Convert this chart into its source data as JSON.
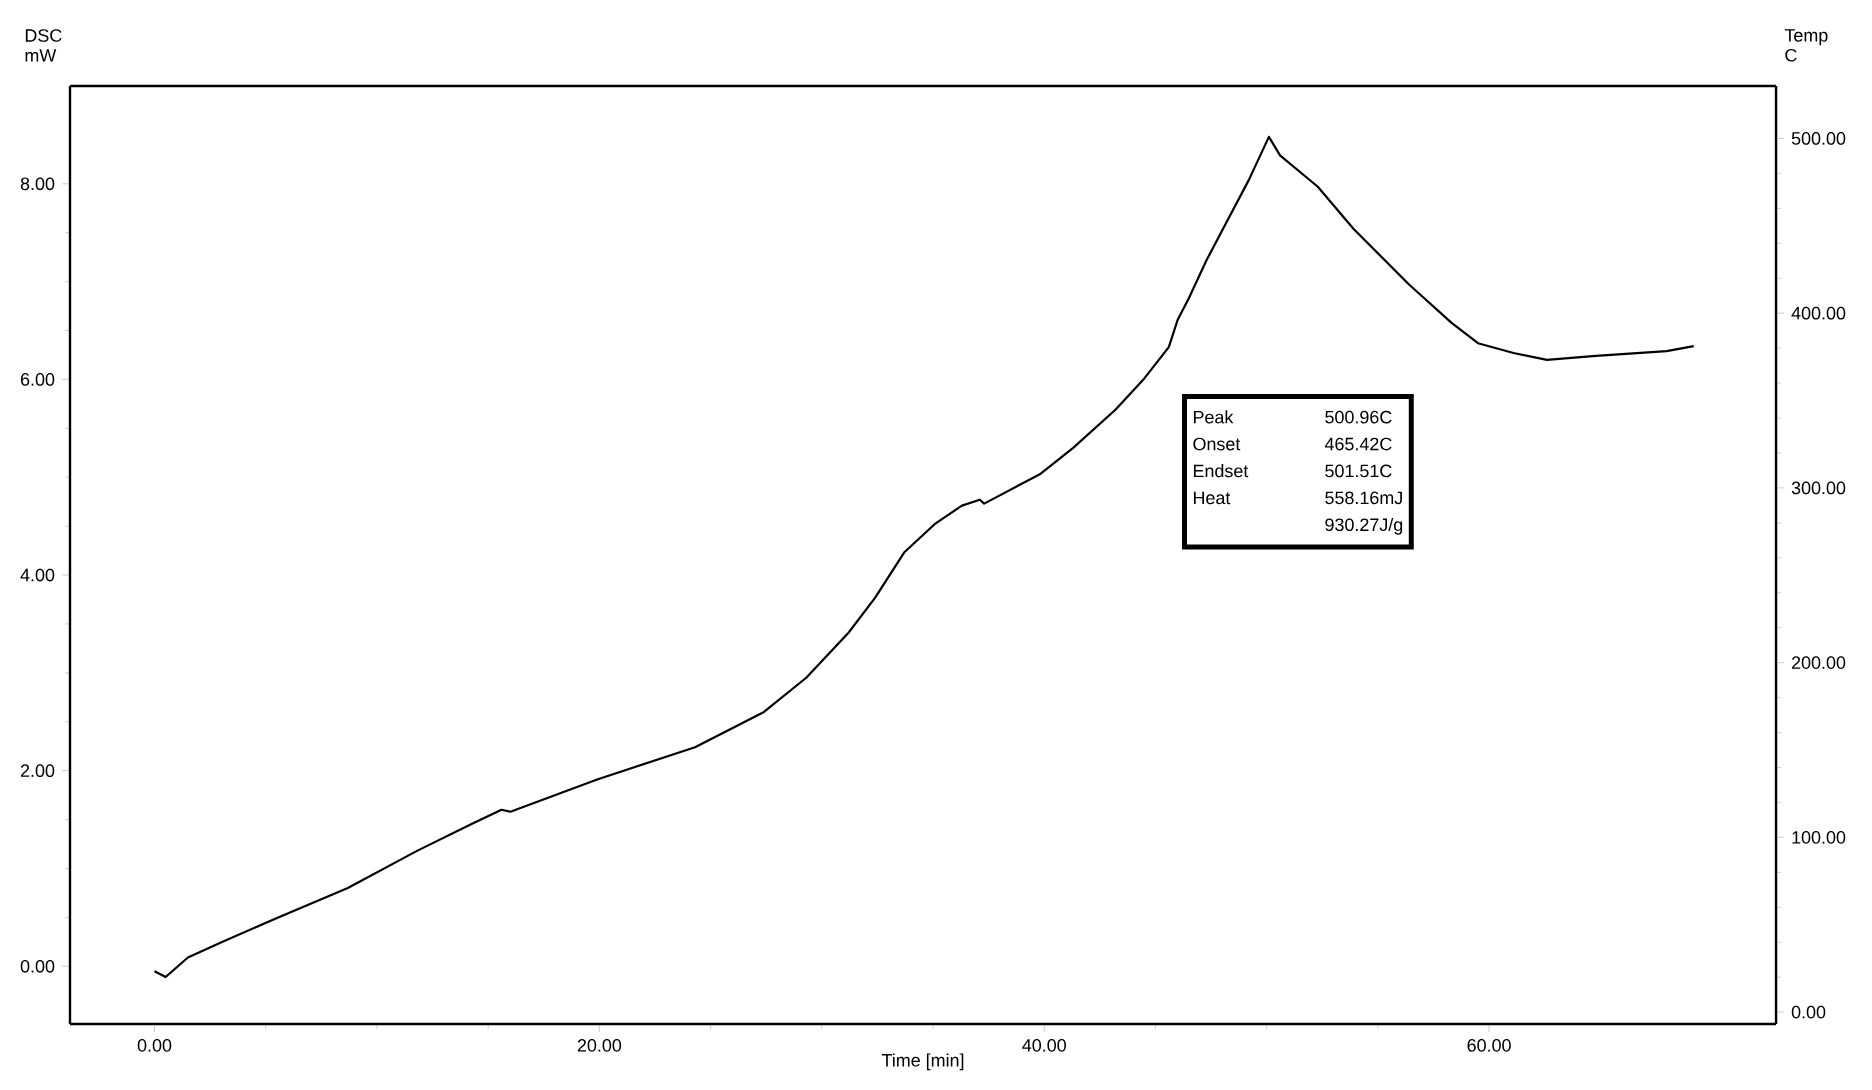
{
  "chart_data": {
    "type": "line",
    "xlabel": "Time [min]",
    "ylabel": "DSC mW",
    "y2label": "Temp C",
    "xlim": [
      -3.8,
      72.9
    ],
    "ylim": [
      -0.59,
      9.0
    ],
    "y2lim": [
      -6.8,
      530
    ],
    "xticks": [
      {
        "value": 0,
        "label": "0.00"
      },
      {
        "value": 20,
        "label": "20.00"
      },
      {
        "value": 40,
        "label": "40.00"
      },
      {
        "value": 60,
        "label": "60.00"
      }
    ],
    "yticks": [
      {
        "value": 0,
        "label": "0.00"
      },
      {
        "value": 2,
        "label": "2.00"
      },
      {
        "value": 4,
        "label": "4.00"
      },
      {
        "value": 6,
        "label": "6.00"
      },
      {
        "value": 8,
        "label": "8.00"
      }
    ],
    "y2ticks": [
      {
        "value": 0,
        "label": "0.00"
      },
      {
        "value": 100,
        "label": "100.00"
      },
      {
        "value": 200,
        "label": "200.00"
      },
      {
        "value": 300,
        "label": "300.00"
      },
      {
        "value": 400,
        "label": "400.00"
      },
      {
        "value": 500,
        "label": "500.00"
      }
    ],
    "marker": "none",
    "line_style": "solid",
    "annotations": [
      "Peak",
      "500.96C",
      "Onset",
      "465.42C",
      "Endset",
      "501.51C",
      "Heat",
      "558.16mJ",
      "930.27J/g"
    ],
    "series": [
      {
        "color": "#000000",
        "x": [
          0,
          0.5,
          1.5,
          3.06,
          5.56,
          8.69,
          11.8,
          14.3,
          15.6,
          16.0,
          19.9,
          24.3,
          27.4,
          29.3,
          31.2,
          32.4,
          33.7,
          35.07,
          36.3,
          37.1,
          37.3,
          39.8,
          41.3,
          43.2,
          44.5,
          45.6,
          46.0,
          46.5,
          47.3,
          48.2,
          49.2,
          50.1,
          50.6,
          52.3,
          53.9,
          56.4,
          58.3,
          59.5,
          61.1,
          62.6,
          64.8,
          67.98,
          69.2
        ],
        "values": [
          -0.05,
          -0.11,
          0.09,
          0.25,
          0.5,
          0.8,
          1.18,
          1.46,
          1.6,
          1.58,
          1.91,
          2.24,
          2.6,
          2.95,
          3.41,
          3.77,
          4.23,
          4.52,
          4.71,
          4.77,
          4.73,
          5.03,
          5.3,
          5.69,
          6.01,
          6.33,
          6.61,
          6.83,
          7.22,
          7.61,
          8.04,
          8.48,
          8.29,
          7.97,
          7.54,
          6.97,
          6.58,
          6.37,
          6.27,
          6.2,
          6.24,
          6.29,
          6.34
        ]
      }
    ]
  }
}
